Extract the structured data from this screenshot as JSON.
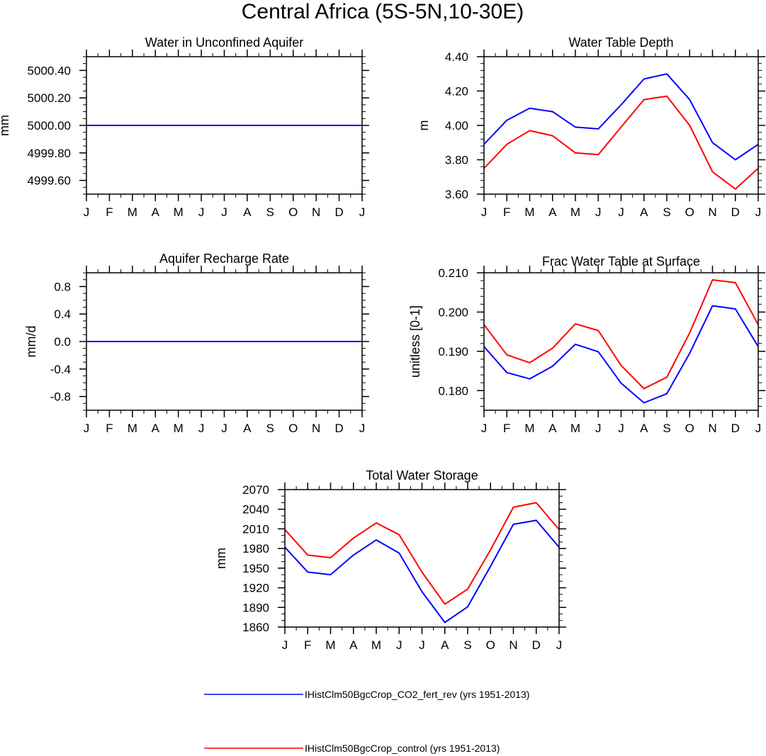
{
  "title": "Central Africa (5S-5N,10-30E)",
  "colors": {
    "series1": "#0000ff",
    "series2": "#ff0000",
    "axis": "#000000"
  },
  "months": [
    "J",
    "F",
    "M",
    "A",
    "M",
    "J",
    "J",
    "A",
    "S",
    "O",
    "N",
    "D",
    "J"
  ],
  "legend": [
    {
      "label": "IHistClm50BgcCrop_CO2_fert_rev (yrs 1951-2013)",
      "color": "#0000ff"
    },
    {
      "label": "IHistClm50BgcCrop_control (yrs 1951-2013)",
      "color": "#ff0000"
    }
  ],
  "chart_data": [
    {
      "type": "line",
      "title": "Water in Unconfined Aquifer",
      "ylabel": "mm",
      "categories": [
        "J",
        "F",
        "M",
        "A",
        "M",
        "J",
        "J",
        "A",
        "S",
        "O",
        "N",
        "D",
        "J"
      ],
      "ylim": [
        4999.5,
        5000.5
      ],
      "yticks": [
        4999.6,
        4999.8,
        5000.0,
        5000.2,
        5000.4
      ],
      "ytick_labels": [
        "4999.60",
        "4999.80",
        "5000.00",
        "5000.20",
        "5000.40"
      ],
      "ytick_minor_step": 0.05,
      "series": [
        {
          "name": "IHistClm50BgcCrop_control (yrs 1951-2013)",
          "color": "#ff0000",
          "values": [
            5000,
            5000,
            5000,
            5000,
            5000,
            5000,
            5000,
            5000,
            5000,
            5000,
            5000,
            5000,
            5000
          ]
        },
        {
          "name": "IHistClm50BgcCrop_CO2_fert_rev (yrs 1951-2013)",
          "color": "#0000ff",
          "values": [
            5000,
            5000,
            5000,
            5000,
            5000,
            5000,
            5000,
            5000,
            5000,
            5000,
            5000,
            5000,
            5000
          ]
        }
      ]
    },
    {
      "type": "line",
      "title": "Water Table Depth",
      "ylabel": "m",
      "categories": [
        "J",
        "F",
        "M",
        "A",
        "M",
        "J",
        "J",
        "A",
        "S",
        "O",
        "N",
        "D",
        "J"
      ],
      "ylim": [
        3.6,
        4.4
      ],
      "yticks": [
        3.6,
        3.8,
        4.0,
        4.2,
        4.4
      ],
      "ytick_labels": [
        "3.60",
        "3.80",
        "4.00",
        "4.20",
        "4.40"
      ],
      "ytick_minor_step": 0.04,
      "series": [
        {
          "name": "IHistClm50BgcCrop_CO2_fert_rev (yrs 1951-2013)",
          "color": "#0000ff",
          "values": [
            3.89,
            4.03,
            4.1,
            4.08,
            3.99,
            3.98,
            4.12,
            4.27,
            4.3,
            4.15,
            3.9,
            3.8,
            3.89
          ]
        },
        {
          "name": "IHistClm50BgcCrop_control (yrs 1951-2013)",
          "color": "#ff0000",
          "values": [
            3.75,
            3.89,
            3.97,
            3.94,
            3.84,
            3.83,
            3.99,
            4.15,
            4.17,
            4.0,
            3.73,
            3.63,
            3.75
          ]
        }
      ]
    },
    {
      "type": "line",
      "title": "Aquifer Recharge Rate",
      "ylabel": "mm/d",
      "categories": [
        "J",
        "F",
        "M",
        "A",
        "M",
        "J",
        "J",
        "A",
        "S",
        "O",
        "N",
        "D",
        "J"
      ],
      "ylim": [
        -1.0,
        1.0
      ],
      "yticks": [
        -0.8,
        -0.4,
        0.0,
        0.4,
        0.8
      ],
      "ytick_labels": [
        "-0.8",
        "-0.4",
        "0.0",
        "0.4",
        "0.8"
      ],
      "ytick_minor_step": 0.1,
      "series": [
        {
          "name": "IHistClm50BgcCrop_control (yrs 1951-2013)",
          "color": "#ff0000",
          "values": [
            0,
            0,
            0,
            0,
            0,
            0,
            0,
            0,
            0,
            0,
            0,
            0,
            0
          ]
        },
        {
          "name": "IHistClm50BgcCrop_CO2_fert_rev (yrs 1951-2013)",
          "color": "#0000ff",
          "values": [
            0,
            0,
            0,
            0,
            0,
            0,
            0,
            0,
            0,
            0,
            0,
            0,
            0
          ]
        }
      ]
    },
    {
      "type": "line",
      "title": "Frac Water Table at Surface",
      "ylabel": "unitless [0-1]",
      "categories": [
        "J",
        "F",
        "M",
        "A",
        "M",
        "J",
        "J",
        "A",
        "S",
        "O",
        "N",
        "D",
        "J"
      ],
      "ylim": [
        0.175,
        0.21
      ],
      "yticks": [
        0.18,
        0.19,
        0.2,
        0.21
      ],
      "ytick_labels": [
        "0.180",
        "0.190",
        "0.200",
        "0.210"
      ],
      "ytick_minor_step": 0.002,
      "series": [
        {
          "name": "IHistClm50BgcCrop_CO2_fert_rev (yrs 1951-2013)",
          "color": "#0000ff",
          "values": [
            0.1912,
            0.1846,
            0.183,
            0.1862,
            0.1918,
            0.1899,
            0.1819,
            0.1769,
            0.1792,
            0.1895,
            0.2016,
            0.2008,
            0.1912
          ]
        },
        {
          "name": "IHistClm50BgcCrop_control (yrs 1951-2013)",
          "color": "#ff0000",
          "values": [
            0.1968,
            0.1891,
            0.1871,
            0.1908,
            0.197,
            0.1953,
            0.1864,
            0.1805,
            0.1834,
            0.1947,
            0.2082,
            0.2075,
            0.1968
          ]
        }
      ]
    },
    {
      "type": "line",
      "title": "Total Water Storage",
      "ylabel": "mm",
      "categories": [
        "J",
        "F",
        "M",
        "A",
        "M",
        "J",
        "J",
        "A",
        "S",
        "O",
        "N",
        "D",
        "J"
      ],
      "ylim": [
        1860,
        2070
      ],
      "yticks": [
        1860,
        1890,
        1920,
        1950,
        1980,
        2010,
        2040,
        2070
      ],
      "ytick_labels": [
        "1860",
        "1890",
        "1920",
        "1950",
        "1980",
        "2010",
        "2040",
        "2070"
      ],
      "ytick_minor_step": 10,
      "series": [
        {
          "name": "IHistClm50BgcCrop_CO2_fert_rev (yrs 1951-2013)",
          "color": "#0000ff",
          "values": [
            1982,
            1944,
            1940,
            1970,
            1993,
            1973,
            1914,
            1867,
            1891,
            1953,
            2017,
            2023,
            1982
          ]
        },
        {
          "name": "IHistClm50BgcCrop_control (yrs 1951-2013)",
          "color": "#ff0000",
          "values": [
            2009,
            1970,
            1966,
            1996,
            2019,
            2001,
            1944,
            1895,
            1918,
            1978,
            2043,
            2050,
            2009
          ]
        }
      ]
    }
  ]
}
